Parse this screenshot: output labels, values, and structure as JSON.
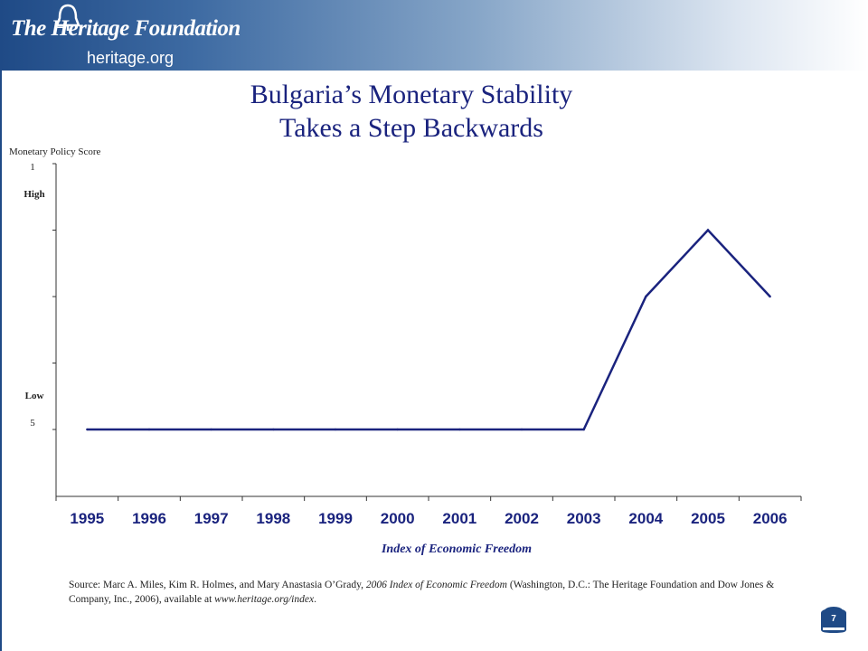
{
  "header": {
    "logo_text": "The Heritage Foundation",
    "logo_url": "heritage.org",
    "accent": "#1f4a86"
  },
  "title": {
    "line1": "Bulgaria’s Monetary Stability",
    "line2": "Takes a Step Backwards"
  },
  "chart_data": {
    "type": "line",
    "title": "Bulgaria’s Monetary Stability Takes a Step Backwards",
    "ylabel": "Monetary Policy Score",
    "xlabel": "Index of Economic Freedom",
    "y_top_tick": "1",
    "y_bottom_tick": "5",
    "y_high_label": "High",
    "y_low_label": "Low",
    "ylim": [
      1,
      5
    ],
    "y_inverted": true,
    "categories": [
      "1995",
      "1996",
      "1997",
      "1998",
      "1999",
      "2000",
      "2001",
      "2002",
      "2003",
      "2004",
      "2005",
      "2006"
    ],
    "series": [
      {
        "values": [
          5,
          5,
          5,
          5,
          5,
          5,
          5,
          5,
          5,
          3,
          2,
          3
        ]
      }
    ],
    "line_color": "#1a237e",
    "tick_label_color": "#1a237e",
    "grid": false
  },
  "source": {
    "prefix": "Source: Marc A. Miles, Kim R. Holmes, and Mary Anastasia O’Grady, ",
    "book": "2006 Index of Economic Freedom",
    "middle": " (Washington, D.C.: The Heritage Foundation and Dow Jones & Company, Inc., 2006), available at ",
    "url": "www.heritage.org/index",
    "suffix": "."
  },
  "page_number": "7"
}
